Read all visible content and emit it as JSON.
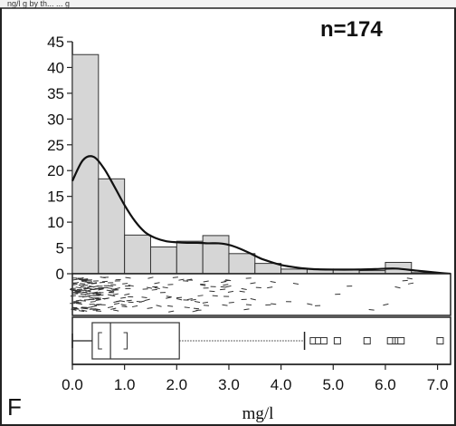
{
  "header_fragment": "ng/l  g  by  th...  ...  g",
  "panel_letter": "F",
  "chart_data": {
    "type": "bar",
    "annotation": "n=174",
    "xlabel": "mg/l",
    "ylabel": "",
    "xlim": [
      0,
      7.25
    ],
    "ylim": [
      0,
      45
    ],
    "y_ticks": [
      "0",
      "5",
      "10",
      "15",
      "20",
      "25",
      "30",
      "35",
      "40",
      "45"
    ],
    "x_ticks": [
      "0.0",
      "1.0",
      "2.0",
      "3.0",
      "4.0",
      "5.0",
      "6.0",
      "7.0"
    ],
    "bin_width": 0.5,
    "bin_starts": [
      0.0,
      0.5,
      1.0,
      1.5,
      2.0,
      2.5,
      3.0,
      3.5,
      4.0,
      4.5,
      5.0,
      5.5,
      6.0,
      6.5
    ],
    "values": [
      42.5,
      18.4,
      7.5,
      5.2,
      6.3,
      7.4,
      3.9,
      2.0,
      0.9,
      0.9,
      0.9,
      0.6,
      2.2,
      0.2
    ],
    "density_curve": {
      "x": [
        0.0,
        0.2,
        0.4,
        0.6,
        0.8,
        1.0,
        1.2,
        1.4,
        1.6,
        1.8,
        2.0,
        2.2,
        2.4,
        2.6,
        2.8,
        3.0,
        3.2,
        3.4,
        3.6,
        3.8,
        4.0,
        4.3,
        4.6,
        5.0,
        5.4,
        5.8,
        6.2,
        6.6,
        7.0,
        7.25
      ],
      "y": [
        18.0,
        22.0,
        22.7,
        20.5,
        17.0,
        13.3,
        10.2,
        8.0,
        6.9,
        6.3,
        6.1,
        6.0,
        6.0,
        5.9,
        5.9,
        5.6,
        4.9,
        4.0,
        3.0,
        2.3,
        1.7,
        1.2,
        0.9,
        0.8,
        0.8,
        0.9,
        1.0,
        0.6,
        0.2,
        0.0
      ]
    },
    "boxplot": {
      "whisker_low": 0.0,
      "q1": 0.38,
      "median": 0.73,
      "q3": 2.05,
      "whisker_high": 4.45,
      "mean_ci": [
        0.5,
        1.05
      ],
      "outliers": [
        4.62,
        4.72,
        4.82,
        5.08,
        5.65,
        6.1,
        6.2,
        6.25,
        6.3,
        7.05
      ]
    },
    "dotplot_seed": 7
  }
}
